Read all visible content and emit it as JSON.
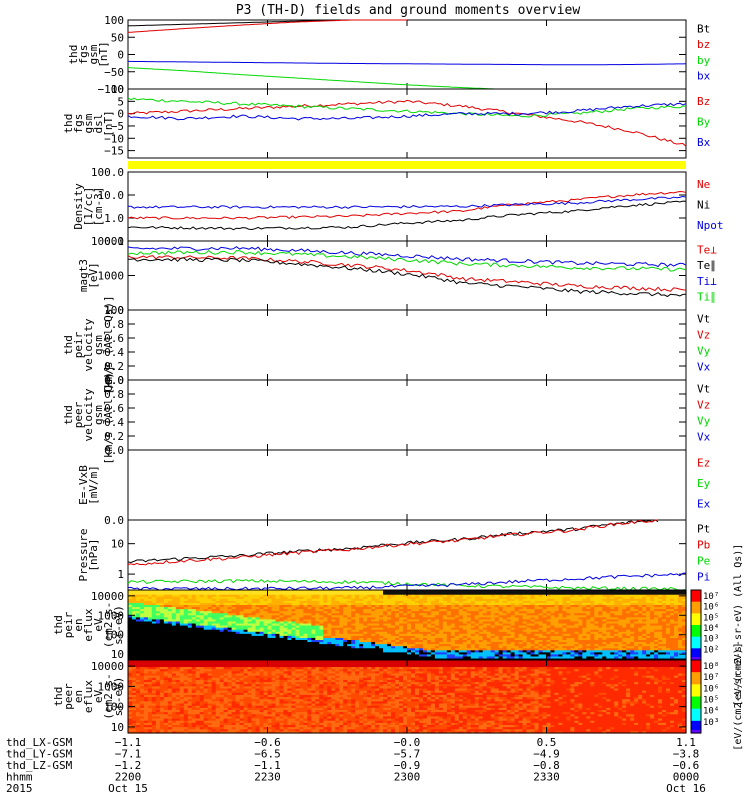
{
  "page": {
    "title": "P3 (TH-D) fields and ground moments overview"
  },
  "colors": {
    "black": "#000000",
    "red": "#e00000",
    "green": "#00d800",
    "blue": "#0000e0",
    "yellow": "#ffff00"
  },
  "chart_data": [
    {
      "id": "fgs_gsm",
      "type": "line",
      "ylabel": [
        "thd",
        "fgs",
        "gsm",
        "[nT]"
      ],
      "ylim": [
        -100,
        100
      ],
      "yticks": [
        -100,
        -50,
        0,
        50,
        100
      ],
      "ytick_labels": [
        "−100",
        "−50",
        "0",
        "50",
        "100"
      ],
      "legend": [
        {
          "label": "Bt",
          "color": "#000000"
        },
        {
          "label": "bz",
          "color": "#e00000"
        },
        {
          "label": "by",
          "color": "#00d800"
        },
        {
          "label": "bx",
          "color": "#0000e0"
        }
      ],
      "series": [
        {
          "name": "Bt",
          "color": "#000000",
          "x": [
            0,
            0.2,
            0.4
          ],
          "y": [
            83,
            92,
            101
          ]
        },
        {
          "name": "bz",
          "color": "#e00000",
          "x": [
            0,
            0.1,
            0.2,
            0.3,
            0.4,
            0.5
          ],
          "y": [
            64,
            75,
            85,
            94,
            100,
            104
          ]
        },
        {
          "name": "by",
          "color": "#00d800",
          "x": [
            0,
            0.1,
            0.2,
            0.3,
            0.4,
            0.5,
            0.6,
            0.7
          ],
          "y": [
            -38,
            -47,
            -58,
            -68,
            -78,
            -88,
            -96,
            -103
          ]
        },
        {
          "name": "bx",
          "color": "#0000e0",
          "x": [
            0,
            0.2,
            0.4,
            0.6,
            0.8,
            0.9,
            1.0
          ],
          "y": [
            -20,
            -23,
            -26,
            -28,
            -30,
            -29,
            -27
          ]
        }
      ]
    },
    {
      "id": "fgs_dsl",
      "type": "line",
      "ylabel": [
        "thd",
        "fgs",
        "gsm",
        "dsl",
        "[nT]"
      ],
      "ylim": [
        -18,
        10
      ],
      "yticks": [
        -15,
        -10,
        -5,
        0,
        5,
        10
      ],
      "ytick_labels": [
        "−15",
        "−10",
        "−5",
        "0",
        "5",
        "10"
      ],
      "legend": [
        {
          "label": "Bz",
          "color": "#e00000"
        },
        {
          "label": "By",
          "color": "#00d800"
        },
        {
          "label": "Bx",
          "color": "#0000e0"
        }
      ],
      "series": [
        {
          "name": "Bz",
          "color": "#e00000",
          "x": [
            0,
            0.1,
            0.2,
            0.3,
            0.4,
            0.5,
            0.6,
            0.7,
            0.8,
            0.9,
            1.0
          ],
          "y": [
            0,
            1,
            2,
            3,
            4,
            5,
            3,
            0,
            -3,
            -7,
            -13
          ]
        },
        {
          "name": "By",
          "color": "#00d800",
          "x": [
            0,
            0.1,
            0.2,
            0.3,
            0.4,
            0.5,
            0.6,
            0.7,
            0.8,
            0.9,
            1.0
          ],
          "y": [
            6,
            5,
            4,
            3,
            2,
            1,
            0,
            -1,
            0,
            2,
            3
          ]
        },
        {
          "name": "Bx",
          "color": "#0000e0",
          "x": [
            0,
            0.1,
            0.2,
            0.3,
            0.4,
            0.5,
            0.6,
            0.7,
            0.8,
            0.9,
            1.0
          ],
          "y": [
            -1,
            -2,
            -1,
            -2,
            -2,
            -1,
            0,
            0,
            1,
            3,
            4
          ]
        }
      ]
    },
    {
      "id": "quality_bar",
      "type": "bar",
      "categories": [
        "2200-0000"
      ],
      "values": [
        1
      ]
    },
    {
      "id": "density",
      "type": "line",
      "scale": "log",
      "ylabel": [
        "Density",
        "[1/cc]",
        "[cm-3]"
      ],
      "ylim": [
        0.1,
        100
      ],
      "yticks": [
        0.1,
        1,
        10,
        100
      ],
      "ytick_labels": [
        "0.1",
        "1.0",
        "10.0",
        "100.0"
      ],
      "legend": [
        {
          "label": "Ne",
          "color": "#e00000"
        },
        {
          "label": "Ni",
          "color": "#000000"
        },
        {
          "label": "Npot",
          "color": "#0000e0"
        }
      ],
      "series": [
        {
          "name": "Ne",
          "color": "#e00000",
          "x": [
            0,
            0.2,
            0.4,
            0.6,
            0.8,
            1.0
          ],
          "y": [
            1.0,
            1.0,
            1.2,
            2.0,
            6.0,
            14
          ]
        },
        {
          "name": "Ni",
          "color": "#000000",
          "x": [
            0,
            0.2,
            0.4,
            0.6,
            0.8,
            1.0
          ],
          "y": [
            0.4,
            0.35,
            0.4,
            0.8,
            2.0,
            5.0
          ]
        },
        {
          "name": "Npot",
          "color": "#0000e0",
          "x": [
            0,
            0.2,
            0.4,
            0.6,
            0.8,
            1.0
          ],
          "y": [
            3.0,
            3.0,
            3.0,
            3.2,
            4.5,
            8.0
          ]
        }
      ]
    },
    {
      "id": "temperature",
      "type": "line",
      "scale": "log",
      "ylabel": [
        "magt3",
        "[eV]"
      ],
      "ylim": [
        100,
        10000
      ],
      "yticks": [
        100,
        1000,
        10000
      ],
      "ytick_labels": [
        "100",
        "1000",
        "10000"
      ],
      "legend": [
        {
          "label": "Te⊥",
          "color": "#e00000"
        },
        {
          "label": "Te∥",
          "color": "#000000"
        },
        {
          "label": "Ti⊥",
          "color": "#0000e0"
        },
        {
          "label": "Ti∥",
          "color": "#00d800"
        }
      ],
      "series": [
        {
          "name": "Te⊥",
          "color": "#e00000",
          "x": [
            0,
            0.2,
            0.4,
            0.6,
            0.8,
            1.0
          ],
          "y": [
            3500,
            3200,
            2000,
            800,
            500,
            380
          ]
        },
        {
          "name": "Te∥",
          "color": "#000000",
          "x": [
            0,
            0.2,
            0.4,
            0.6,
            0.8,
            1.0
          ],
          "y": [
            3000,
            2800,
            1600,
            600,
            350,
            260
          ]
        },
        {
          "name": "Ti⊥",
          "color": "#0000e0",
          "x": [
            0,
            0.2,
            0.4,
            0.6,
            0.8,
            1.0
          ],
          "y": [
            6000,
            6200,
            4500,
            3000,
            2300,
            2000
          ]
        },
        {
          "name": "Ti∥",
          "color": "#00d800",
          "x": [
            0,
            0.2,
            0.4,
            0.6,
            0.8,
            1.0
          ],
          "y": [
            4500,
            4800,
            3500,
            2200,
            1700,
            1500
          ]
        }
      ]
    },
    {
      "id": "peir_velocity",
      "type": "line",
      "ylabel": [
        "thd",
        "peir",
        "velocity",
        "gsm",
        "[km/s (All Qs)]"
      ],
      "ylim": [
        0,
        1
      ],
      "yticks": [
        0,
        0.2,
        0.4,
        0.6,
        0.8,
        1.0
      ],
      "ytick_labels": [
        "0.0",
        "0.2",
        "0.4",
        "0.6",
        "0.8",
        "1.0"
      ],
      "legend": [
        {
          "label": "Vt",
          "color": "#000000"
        },
        {
          "label": "Vz",
          "color": "#e00000"
        },
        {
          "label": "Vy",
          "color": "#00d800"
        },
        {
          "label": "Vx",
          "color": "#0000e0"
        }
      ],
      "series": []
    },
    {
      "id": "peer_velocity",
      "type": "line",
      "ylabel": [
        "thd",
        "peer",
        "velocity",
        "gsm",
        "[km/s (All Qs)]"
      ],
      "ylim": [
        0,
        1
      ],
      "yticks": [
        0,
        0.2,
        0.4,
        0.6,
        0.8,
        1.0
      ],
      "ytick_labels": [
        "0.0",
        "0.2",
        "0.4",
        "0.6",
        "0.8",
        "1.0"
      ],
      "legend": [
        {
          "label": "Vt",
          "color": "#000000"
        },
        {
          "label": "Vz",
          "color": "#e00000"
        },
        {
          "label": "Vy",
          "color": "#00d800"
        },
        {
          "label": "Vx",
          "color": "#0000e0"
        }
      ],
      "series": []
    },
    {
      "id": "efield",
      "type": "line",
      "ylabel": [
        "E=-VxB",
        "[mV/m]"
      ],
      "ylim": [
        0,
        1
      ],
      "yticks": [
        0
      ],
      "ytick_labels": [
        "0.0"
      ],
      "legend": [
        {
          "label": "Ez",
          "color": "#e00000"
        },
        {
          "label": "Ey",
          "color": "#00d800"
        },
        {
          "label": "Ex",
          "color": "#0000e0"
        }
      ],
      "series": []
    },
    {
      "id": "pressure",
      "type": "line",
      "scale": "log",
      "ylabel": [
        "Pressure",
        "[nPa]"
      ],
      "ylim": [
        0.3,
        60
      ],
      "yticks": [
        1,
        10
      ],
      "ytick_labels": [
        "1",
        "10"
      ],
      "legend": [
        {
          "label": "Pt",
          "color": "#000000"
        },
        {
          "label": "Pb",
          "color": "#e00000"
        },
        {
          "label": "Pe",
          "color": "#00d800"
        },
        {
          "label": "Pi",
          "color": "#0000e0"
        }
      ],
      "series": [
        {
          "name": "Pt",
          "color": "#000000",
          "x": [
            0,
            0.2,
            0.4,
            0.6,
            0.8,
            0.95
          ],
          "y": [
            2.5,
            4.0,
            7.0,
            14,
            30,
            60
          ]
        },
        {
          "name": "Pb",
          "color": "#e00000",
          "x": [
            0,
            0.2,
            0.4,
            0.6,
            0.8,
            0.95
          ],
          "y": [
            2.0,
            3.5,
            6.5,
            13,
            28,
            60
          ]
        },
        {
          "name": "Pe",
          "color": "#00d800",
          "x": [
            0,
            0.2,
            0.4,
            0.6,
            0.8,
            1.0
          ],
          "y": [
            0.55,
            0.6,
            0.55,
            0.42,
            0.35,
            0.32
          ]
        },
        {
          "name": "Pi",
          "color": "#0000e0",
          "x": [
            0,
            0.2,
            0.4,
            0.6,
            0.8,
            1.0
          ],
          "y": [
            0.33,
            0.33,
            0.35,
            0.45,
            0.7,
            1.0
          ]
        }
      ]
    },
    {
      "id": "peir_spec",
      "type": "heatmap",
      "scale": "log",
      "ylabel": [
        "thd",
        "peir",
        "en",
        "eflux",
        "eV",
        "(cm2-s-",
        "sr-eV)"
      ],
      "ylim": [
        5,
        20000
      ],
      "yticks": [
        10,
        100,
        1000,
        10000
      ],
      "ytick_labels": [
        "10",
        "100",
        "1000",
        "10000"
      ],
      "colorbar": {
        "label": "[eV/(cm2-s-sr-eV) (All Qs)]",
        "ticks": [
          "10⁷",
          "10⁶",
          "10⁵",
          "10⁴",
          "10³",
          "10²"
        ]
      }
    },
    {
      "id": "peer_spec",
      "type": "heatmap",
      "scale": "log",
      "ylabel": [
        "thd",
        "peer",
        "en",
        "eflux",
        "eV",
        "(cm2-s-",
        "sr-eV)"
      ],
      "ylim": [
        5,
        20000
      ],
      "yticks": [
        10,
        100,
        1000,
        10000
      ],
      "ytick_labels": [
        "10",
        "100",
        "1000",
        "10000"
      ],
      "colorbar": {
        "label": "[eV/(cm2-s-sr-eV)]",
        "ticks": [
          "10⁸",
          "10⁷",
          "10⁶",
          "10⁵",
          "10⁴",
          "10³"
        ]
      }
    }
  ],
  "orbit": {
    "rows": [
      {
        "label": "thd_LX-GSM",
        "values": [
          "−1.1",
          "−0.6",
          "−0.0",
          "0.5",
          "1.1"
        ]
      },
      {
        "label": "thd_LY-GSM",
        "values": [
          "−7.1",
          "−6.5",
          "−5.7",
          "−4.9",
          "−3.8"
        ]
      },
      {
        "label": "thd_LZ-GSM",
        "values": [
          "−1.2",
          "−1.1",
          "−0.9",
          "−0.8",
          "−0.6"
        ]
      },
      {
        "label": "hhmm",
        "values": [
          "2200",
          "2230",
          "2300",
          "2330",
          "0000"
        ]
      },
      {
        "label": "2015",
        "values": [
          "Oct 15",
          "",
          "",
          "",
          "Oct 16"
        ]
      }
    ]
  }
}
